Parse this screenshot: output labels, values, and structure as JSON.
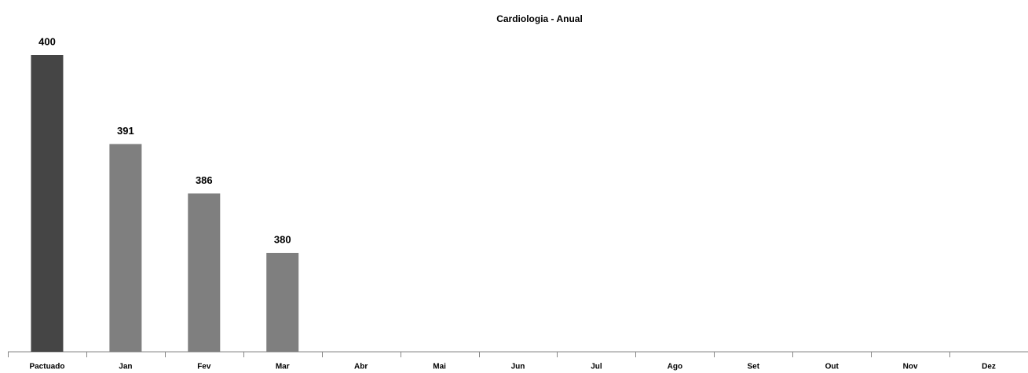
{
  "chart_data": {
    "type": "bar",
    "title": "Cardiologia - Anual",
    "categories": [
      "Pactuado",
      "Jan",
      "Fev",
      "Mar",
      "Abr",
      "Mai",
      "Jun",
      "Jul",
      "Ago",
      "Set",
      "Out",
      "Nov",
      "Dez"
    ],
    "values": [
      400,
      391,
      386,
      380,
      null,
      null,
      null,
      null,
      null,
      null,
      null,
      null,
      null
    ],
    "colors": [
      "#454545",
      "#7f7f7f",
      "#7f7f7f",
      "#7f7f7f",
      "#7f7f7f",
      "#7f7f7f",
      "#7f7f7f",
      "#7f7f7f",
      "#7f7f7f",
      "#7f7f7f",
      "#7f7f7f",
      "#7f7f7f",
      "#7f7f7f"
    ],
    "ylim": [
      370,
      400
    ]
  }
}
